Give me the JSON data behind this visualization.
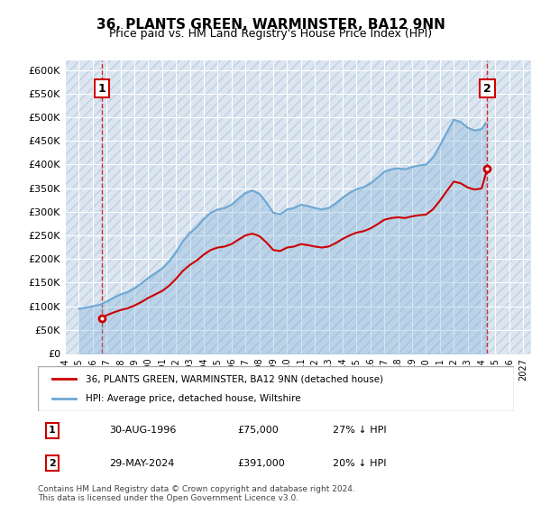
{
  "title": "36, PLANTS GREEN, WARMINSTER, BA12 9NN",
  "subtitle": "Price paid vs. HM Land Registry's House Price Index (HPI)",
  "ylabel": "",
  "ylim": [
    0,
    620000
  ],
  "yticks": [
    0,
    50000,
    100000,
    150000,
    200000,
    250000,
    300000,
    350000,
    400000,
    450000,
    500000,
    550000,
    600000
  ],
  "ytick_labels": [
    "£0",
    "£50K",
    "£100K",
    "£150K",
    "£200K",
    "£250K",
    "£300K",
    "£350K",
    "£400K",
    "£450K",
    "£500K",
    "£550K",
    "£600K"
  ],
  "xlim_start": 1994.0,
  "xlim_end": 2027.5,
  "xticks": [
    1994,
    1995,
    1996,
    1997,
    1998,
    1999,
    2000,
    2001,
    2002,
    2003,
    2004,
    2005,
    2006,
    2007,
    2008,
    2009,
    2010,
    2011,
    2012,
    2013,
    2014,
    2015,
    2016,
    2017,
    2018,
    2019,
    2020,
    2021,
    2022,
    2023,
    2024,
    2025,
    2026,
    2027
  ],
  "background_color": "#dce6f1",
  "plot_bg_color": "#dce6f1",
  "hatch_color": "#c0cfe0",
  "grid_color": "#ffffff",
  "hpi_color": "#6fa8d4",
  "price_color": "#cc0000",
  "marker1_x": 1996.664,
  "marker1_y": 75000,
  "marker2_x": 2024.414,
  "marker2_y": 391000,
  "marker1_label": "1",
  "marker2_label": "2",
  "vline1_x": 1996.664,
  "vline2_x": 2024.414,
  "legend_price_label": "36, PLANTS GREEN, WARMINSTER, BA12 9NN (detached house)",
  "legend_hpi_label": "HPI: Average price, detached house, Wiltshire",
  "annotation1_num": "1",
  "annotation1_date": "30-AUG-1996",
  "annotation1_price": "£75,000",
  "annotation1_hpi": "27% ↓ HPI",
  "annotation2_num": "2",
  "annotation2_date": "29-MAY-2024",
  "annotation2_price": "£391,000",
  "annotation2_hpi": "20% ↓ HPI",
  "footnote": "Contains HM Land Registry data © Crown copyright and database right 2024.\nThis data is licensed under the Open Government Licence v3.0."
}
